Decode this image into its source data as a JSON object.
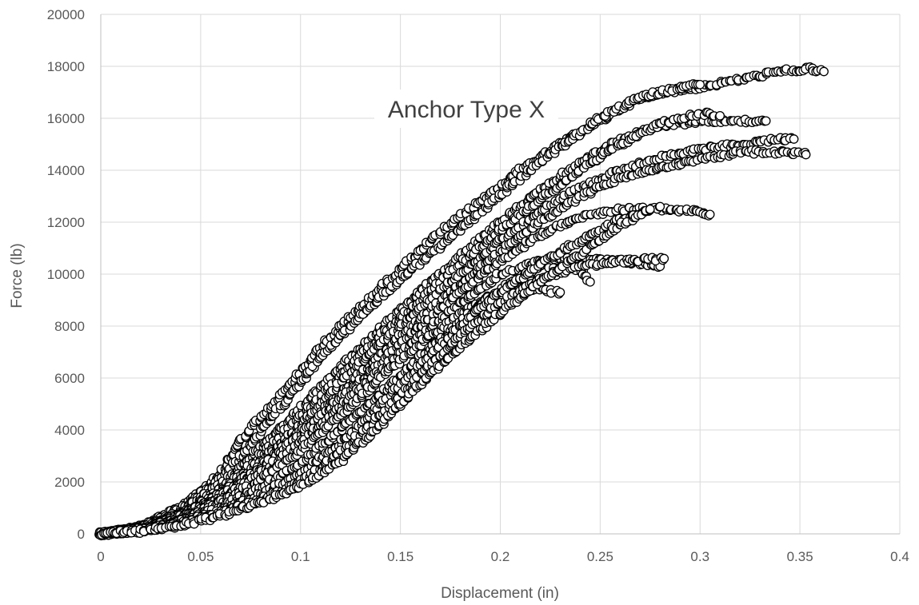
{
  "chart_data": {
    "type": "scatter",
    "title": "Anchor Type X",
    "xlabel": "Displacement (in)",
    "ylabel": "Force (lb)",
    "xlim": [
      0,
      0.4
    ],
    "ylim": [
      0,
      20000
    ],
    "x_ticks": [
      0,
      0.05,
      0.1,
      0.15,
      0.2,
      0.25,
      0.3,
      0.35,
      0.4
    ],
    "x_tick_labels": [
      "0",
      "0.05",
      "0.1",
      "0.15",
      "0.2",
      "0.25",
      "0.3",
      "0.35",
      "0.4"
    ],
    "y_ticks": [
      0,
      2000,
      4000,
      6000,
      8000,
      10000,
      12000,
      14000,
      16000,
      18000,
      20000
    ],
    "y_tick_labels": [
      "0",
      "2000",
      "4000",
      "6000",
      "8000",
      "10000",
      "12000",
      "14000",
      "16000",
      "18000",
      "20000"
    ],
    "grid": "vertical and horizontal",
    "legend": "none",
    "marker_fill": "#ffffff",
    "marker_stroke": "#000000",
    "series": [
      {
        "x": [
          0,
          0.02,
          0.04,
          0.06,
          0.07,
          0.09,
          0.11,
          0.13,
          0.15,
          0.17,
          0.19,
          0.21,
          0.23,
          0.25,
          0.265,
          0.28,
          0.3,
          0.32,
          0.34,
          0.355,
          0.362
        ],
        "y": [
          0,
          300,
          1000,
          2300,
          3600,
          5300,
          7200,
          8700,
          10200,
          11600,
          12800,
          14000,
          15000,
          15900,
          16600,
          17000,
          17200,
          17500,
          17800,
          17900,
          17800
        ]
      },
      {
        "x": [
          0,
          0.02,
          0.04,
          0.06,
          0.075,
          0.09,
          0.11,
          0.13,
          0.15,
          0.17,
          0.19,
          0.21,
          0.23,
          0.25,
          0.27,
          0.29,
          0.3
        ],
        "y": [
          0,
          250,
          900,
          2100,
          3400,
          4900,
          6800,
          8400,
          9800,
          11100,
          12400,
          13700,
          14900,
          16000,
          16800,
          17200,
          17300
        ]
      },
      {
        "x": [
          0,
          0.02,
          0.04,
          0.06,
          0.08,
          0.1,
          0.12,
          0.14,
          0.16,
          0.18,
          0.2,
          0.22,
          0.24,
          0.26,
          0.28,
          0.3,
          0.32,
          0.333
        ],
        "y": [
          0,
          220,
          850,
          1900,
          3300,
          4800,
          6400,
          7900,
          9300,
          10700,
          12000,
          13200,
          14300,
          15200,
          15700,
          15900,
          15900,
          15900
        ]
      },
      {
        "x": [
          0,
          0.02,
          0.04,
          0.06,
          0.08,
          0.1,
          0.12,
          0.14,
          0.16,
          0.18,
          0.2,
          0.22,
          0.24,
          0.26,
          0.28,
          0.3,
          0.31
        ],
        "y": [
          0,
          200,
          750,
          1700,
          3000,
          4500,
          6100,
          7600,
          9000,
          10400,
          11700,
          12900,
          14000,
          15000,
          15800,
          16200,
          16100
        ]
      },
      {
        "x": [
          0,
          0.02,
          0.04,
          0.06,
          0.08,
          0.1,
          0.12,
          0.14,
          0.16,
          0.18,
          0.2,
          0.22,
          0.24,
          0.26,
          0.28,
          0.3,
          0.32,
          0.34,
          0.347
        ],
        "y": [
          0,
          200,
          700,
          1600,
          2800,
          4200,
          5800,
          7300,
          8700,
          10000,
          11300,
          12400,
          13300,
          14000,
          14500,
          14800,
          15000,
          15200,
          15200
        ]
      },
      {
        "x": [
          0,
          0.02,
          0.04,
          0.06,
          0.08,
          0.1,
          0.12,
          0.14,
          0.16,
          0.18,
          0.2,
          0.22,
          0.24,
          0.26,
          0.28,
          0.3,
          0.32,
          0.34,
          0.353
        ],
        "y": [
          0,
          180,
          650,
          1500,
          2600,
          3900,
          5400,
          6900,
          8300,
          9600,
          10900,
          12000,
          13000,
          13700,
          14100,
          14400,
          14700,
          14700,
          14600
        ]
      },
      {
        "x": [
          0,
          0.02,
          0.04,
          0.06,
          0.08,
          0.1,
          0.12,
          0.14,
          0.16,
          0.18,
          0.2,
          0.22,
          0.24,
          0.26,
          0.28,
          0.3,
          0.305
        ],
        "y": [
          0,
          170,
          600,
          1400,
          2500,
          3800,
          5200,
          6600,
          8000,
          9300,
          10500,
          11500,
          12200,
          12500,
          12500,
          12400,
          12300
        ]
      },
      {
        "x": [
          0,
          0.02,
          0.04,
          0.06,
          0.08,
          0.1,
          0.12,
          0.14,
          0.16,
          0.18,
          0.2,
          0.22,
          0.24,
          0.26,
          0.28
        ],
        "y": [
          0,
          160,
          550,
          1300,
          2300,
          3500,
          4900,
          6300,
          7600,
          8900,
          10000,
          10500,
          10600,
          10500,
          10300
        ]
      },
      {
        "x": [
          0,
          0.02,
          0.04,
          0.06,
          0.08,
          0.1,
          0.12,
          0.14,
          0.16,
          0.18,
          0.2,
          0.22,
          0.23
        ],
        "y": [
          0,
          150,
          500,
          1200,
          2100,
          3200,
          4600,
          6000,
          7300,
          8500,
          9300,
          9400,
          9300
        ]
      },
      {
        "x": [
          0,
          0.02,
          0.04,
          0.06,
          0.08,
          0.1,
          0.12,
          0.14,
          0.16,
          0.18,
          0.2,
          0.22,
          0.24,
          0.245
        ],
        "y": [
          0,
          140,
          450,
          1000,
          1800,
          2700,
          4000,
          5400,
          6800,
          8200,
          9400,
          10300,
          10200,
          9700
        ]
      },
      {
        "x": [
          0,
          0.02,
          0.04,
          0.06,
          0.08,
          0.1,
          0.12,
          0.14,
          0.16,
          0.18,
          0.2,
          0.22,
          0.24,
          0.26,
          0.28
        ],
        "y": [
          0,
          130,
          400,
          900,
          1500,
          2300,
          3500,
          5000,
          6500,
          8000,
          9300,
          10400,
          11300,
          12100,
          12600
        ]
      },
      {
        "x": [
          0,
          0.02,
          0.04,
          0.06,
          0.08,
          0.1,
          0.12,
          0.14,
          0.16,
          0.18,
          0.2,
          0.22,
          0.24,
          0.26,
          0.282
        ],
        "y": [
          0,
          120,
          350,
          800,
          1300,
          2000,
          3100,
          4600,
          6100,
          7600,
          8900,
          9800,
          10300,
          10500,
          10600
        ]
      },
      {
        "x": [
          0,
          0.02,
          0.04,
          0.06,
          0.08,
          0.1,
          0.12,
          0.14,
          0.16,
          0.18,
          0.2,
          0.22,
          0.24,
          0.26,
          0.275
        ],
        "y": [
          0,
          110,
          320,
          700,
          1200,
          1800,
          2800,
          4200,
          5800,
          7200,
          8500,
          9700,
          10800,
          11900,
          12500
        ]
      }
    ]
  }
}
